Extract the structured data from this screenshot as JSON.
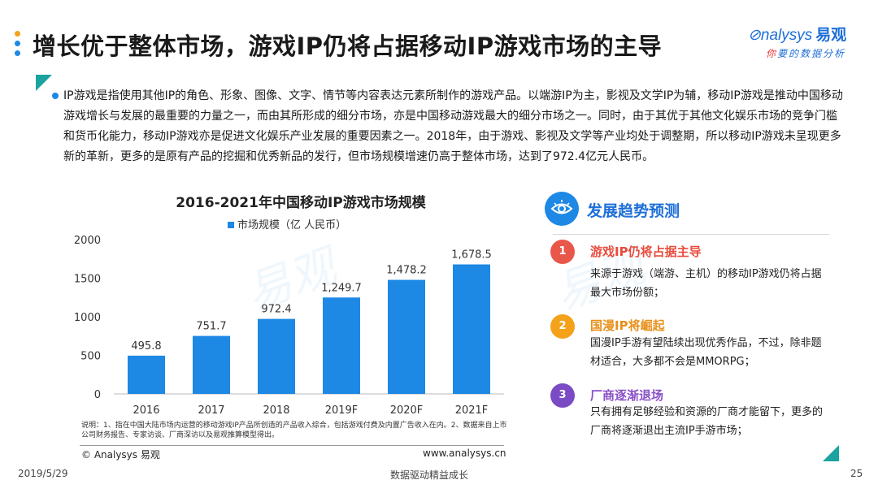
{
  "colors": {
    "accent": "#1e88e5",
    "teal": "#1ba3a0",
    "red": "#e8574a",
    "orange": "#f4a21a",
    "purple": "#7a4bc4",
    "headRed": "#e84b3c",
    "headOrange": "#e8901a",
    "headPurple": "#8a50c8"
  },
  "title": "增长优于整体市场，游戏IP仍将占据移动IP游戏市场的主导",
  "logo": {
    "en": "nalysys",
    "cn": "易观",
    "sub_red": "你",
    "sub_rest": "要的数据分析"
  },
  "intro": "IP游戏是指使用其他IP的角色、形象、图像、文字、情节等内容表达元素所制作的游戏产品。以端游IP为主，影视及文学IP为辅，移动IP游戏是推动中国移动游戏增长与发展的最重要的力量之一，而由其所形成的细分市场，亦是中国移动游戏最大的细分市场之一。同时，由于其优于其他文化娱乐市场的竞争门槛和货币化能力，移动IP游戏亦是促进文化娱乐产业发展的重要因素之一。2018年，由于游戏、影视及文学等产业均处于调整期，所以移动IP游戏未呈现更多新的革新，更多的是原有产品的挖掘和优秀新品的发行，但市场规模增速仍高于整体市场，达到了972.4亿元人民币。",
  "chart_data": {
    "type": "bar",
    "title": "2016-2021年中国移动IP游戏市场规模",
    "categories": [
      "2016",
      "2017",
      "2018",
      "2019F",
      "2020F",
      "2021F"
    ],
    "series": [
      {
        "name": "市场规模（亿 人民币）",
        "values": [
          495.8,
          751.7,
          972.4,
          1249.7,
          1478.2,
          1678.5
        ]
      }
    ],
    "value_labels": [
      "495.8",
      "751.7",
      "972.4",
      "1,249.7",
      "1,478.2",
      "1,678.5"
    ],
    "ylim": [
      0,
      2000
    ],
    "yticks": [
      0,
      500,
      1000,
      1500,
      2000
    ],
    "ytick_labels": [
      "0",
      "500",
      "1000",
      "1500",
      "2000"
    ],
    "legend": "top",
    "grid": false
  },
  "note": "说明：1、指在中国大陆市场内运营的移动游戏IP产品所创造的产品收入综合，包括游戏付费及内置广告收入在内。2、数据来自上市公司财务报告、专家访谈、厂商深访以及易观推算模型得出。",
  "copyright": "© Analysys 易观",
  "website": "www.analysys.cn",
  "trend": {
    "title": "发展趋势预测",
    "items": [
      {
        "num": "1",
        "head": "游戏IP仍将占据主导",
        "body": "来源于游戏（端游、主机）的移动IP游戏仍将占据最大市场份额；"
      },
      {
        "num": "2",
        "head": "国漫IP将崛起",
        "body": "国漫IP手游有望陆续出现优秀作品，不过，除非题材适合，大多都不会是MMORPG；"
      },
      {
        "num": "3",
        "head": "厂商逐渐退场",
        "body": "只有拥有足够经验和资源的厂商才能留下，更多的厂商将逐渐退出主流IP手游市场；"
      }
    ]
  },
  "footer": {
    "date": "2019/5/29",
    "slogan": "数据驱动精益成长",
    "page": "25"
  },
  "icons": [
    "eye-icon",
    "analysys-logo"
  ]
}
